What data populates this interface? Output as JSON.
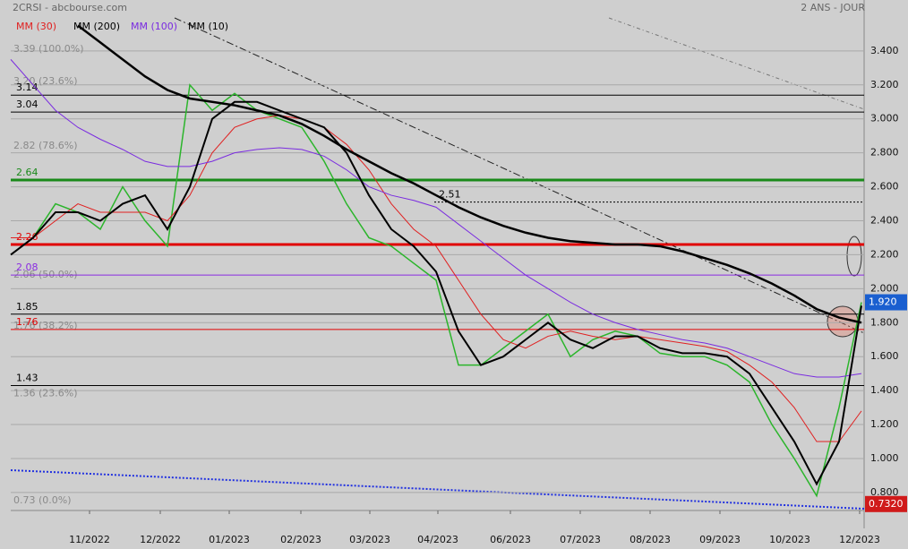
{
  "chart_data": {
    "type": "line",
    "title": "2CRSI - abcbourse.com",
    "subtitle": "2 ANS - JOUR",
    "x": [
      0,
      25,
      50,
      75,
      100,
      125,
      150,
      175,
      200,
      225,
      250,
      275,
      300,
      325,
      350,
      375,
      400,
      425,
      450,
      475,
      500,
      525,
      550,
      575,
      600,
      625,
      650,
      675,
      700,
      725,
      750,
      775,
      800,
      825,
      850,
      875,
      900,
      925,
      950
    ],
    "xlim": [
      0,
      953
    ],
    "xticks": [
      {
        "value": 88,
        "label": "11/2022"
      },
      {
        "value": 167,
        "label": "12/2022"
      },
      {
        "value": 244,
        "label": "01/2023"
      },
      {
        "value": 324,
        "label": "02/2023"
      },
      {
        "value": 401,
        "label": "03/2023"
      },
      {
        "value": 477,
        "label": "04/2023"
      },
      {
        "value": 558,
        "label": "06/2023"
      },
      {
        "value": 636,
        "label": "07/2023"
      },
      {
        "value": 714,
        "label": "08/2023"
      },
      {
        "value": 792,
        "label": "09/2023"
      },
      {
        "value": 870,
        "label": "10/2023"
      },
      {
        "value": 948,
        "label": "12/2023"
      }
    ],
    "ylim": [
      0.694,
      3.7
    ],
    "yticks": [
      {
        "value": 0.8,
        "label": "0.800"
      },
      {
        "value": 1.0,
        "label": "1.000"
      },
      {
        "value": 1.2,
        "label": "1.200"
      },
      {
        "value": 1.4,
        "label": "1.400"
      },
      {
        "value": 1.6,
        "label": "1.600"
      },
      {
        "value": 1.8,
        "label": "1.800"
      },
      {
        "value": 2.0,
        "label": "2.000"
      },
      {
        "value": 2.2,
        "label": "2.200"
      },
      {
        "value": 2.4,
        "label": "2.400"
      },
      {
        "value": 2.6,
        "label": "2.600"
      },
      {
        "value": 2.8,
        "label": "2.800"
      },
      {
        "value": 3.0,
        "label": "3.000"
      },
      {
        "value": 3.2,
        "label": "3.200"
      },
      {
        "value": 3.4,
        "label": "3.400"
      }
    ],
    "grid": true,
    "price": {
      "color": "#2bb52b",
      "values": [
        2.2,
        2.3,
        2.5,
        2.45,
        2.35,
        2.6,
        2.4,
        2.25,
        3.2,
        3.05,
        3.15,
        3.05,
        3.0,
        2.95,
        2.75,
        2.5,
        2.3,
        2.25,
        2.15,
        2.05,
        1.55,
        1.55,
        1.65,
        1.75,
        1.85,
        1.6,
        1.7,
        1.75,
        1.72,
        1.62,
        1.6,
        1.6,
        1.55,
        1.45,
        1.2,
        1.0,
        0.78,
        1.3,
        1.92
      ]
    },
    "series": [
      {
        "name": "MM (30)",
        "color": "#e02020",
        "width": 1,
        "values": [
          2.3,
          2.3,
          2.4,
          2.5,
          2.45,
          2.45,
          2.45,
          2.4,
          2.55,
          2.8,
          2.95,
          3.0,
          3.02,
          3.0,
          2.95,
          2.85,
          2.7,
          2.5,
          2.35,
          2.25,
          2.05,
          1.85,
          1.7,
          1.65,
          1.72,
          1.75,
          1.72,
          1.7,
          1.72,
          1.7,
          1.68,
          1.66,
          1.63,
          1.55,
          1.45,
          1.3,
          1.1,
          1.1,
          1.28
        ]
      },
      {
        "name": "MM (200)",
        "color": "#000000",
        "width": 2.5,
        "values": [
          null,
          null,
          null,
          3.55,
          3.45,
          3.35,
          3.25,
          3.17,
          3.12,
          3.1,
          3.08,
          3.05,
          3.02,
          2.97,
          2.9,
          2.82,
          2.75,
          2.68,
          2.62,
          2.55,
          2.48,
          2.42,
          2.37,
          2.33,
          2.3,
          2.28,
          2.27,
          2.26,
          2.26,
          2.25,
          2.22,
          2.18,
          2.14,
          2.09,
          2.03,
          1.96,
          1.88,
          1.83,
          1.8
        ]
      },
      {
        "name": "MM (100)",
        "color": "#7a2be0",
        "width": 1,
        "values": [
          3.35,
          3.2,
          3.05,
          2.95,
          2.88,
          2.82,
          2.75,
          2.72,
          2.72,
          2.75,
          2.8,
          2.82,
          2.83,
          2.82,
          2.78,
          2.7,
          2.6,
          2.55,
          2.52,
          2.48,
          2.38,
          2.28,
          2.18,
          2.08,
          2.0,
          1.92,
          1.85,
          1.8,
          1.76,
          1.73,
          1.7,
          1.68,
          1.65,
          1.6,
          1.55,
          1.5,
          1.48,
          1.48,
          1.5
        ]
      },
      {
        "name": "MM (10)",
        "color": "#000000",
        "width": 2,
        "values": [
          2.2,
          2.3,
          2.45,
          2.45,
          2.4,
          2.5,
          2.55,
          2.35,
          2.6,
          3.0,
          3.1,
          3.1,
          3.05,
          3.0,
          2.95,
          2.8,
          2.55,
          2.35,
          2.25,
          2.1,
          1.75,
          1.55,
          1.6,
          1.7,
          1.8,
          1.7,
          1.65,
          1.72,
          1.72,
          1.65,
          1.62,
          1.62,
          1.6,
          1.5,
          1.3,
          1.1,
          0.85,
          1.1,
          1.9
        ]
      }
    ],
    "levels": [
      {
        "value": 3.14,
        "color": "#000000"
      },
      {
        "value": 3.04,
        "color": "#000000"
      },
      {
        "value": 2.64,
        "color": "#1a8a1a"
      },
      {
        "value": 2.51,
        "color": "#000000"
      },
      {
        "value": 2.26,
        "color": "#e00000"
      },
      {
        "value": 2.08,
        "color": "#8a2be2"
      },
      {
        "value": 1.85,
        "color": "#000000"
      },
      {
        "value": 1.76,
        "color": "#e00000"
      },
      {
        "value": 1.43,
        "color": "#000000"
      }
    ],
    "fib_labels": [
      {
        "value": 3.39,
        "label": "3.39 (100.0%)"
      },
      {
        "value": 3.2,
        "label": "3.20 (23.6%)"
      },
      {
        "value": 2.82,
        "label": "2.82 (78.6%)"
      },
      {
        "value": 2.06,
        "label": "2.06 (50.0%)"
      },
      {
        "value": 1.76,
        "label": "1.76 (38.2%)"
      },
      {
        "value": 1.36,
        "label": "1.36 (23.6%)"
      },
      {
        "value": 0.73,
        "label": "0.73 (0.0%)"
      }
    ],
    "last_price": {
      "value": 1.92,
      "label": "1.920"
    },
    "low_price": {
      "value": 0.732,
      "label": "0.7320"
    }
  }
}
